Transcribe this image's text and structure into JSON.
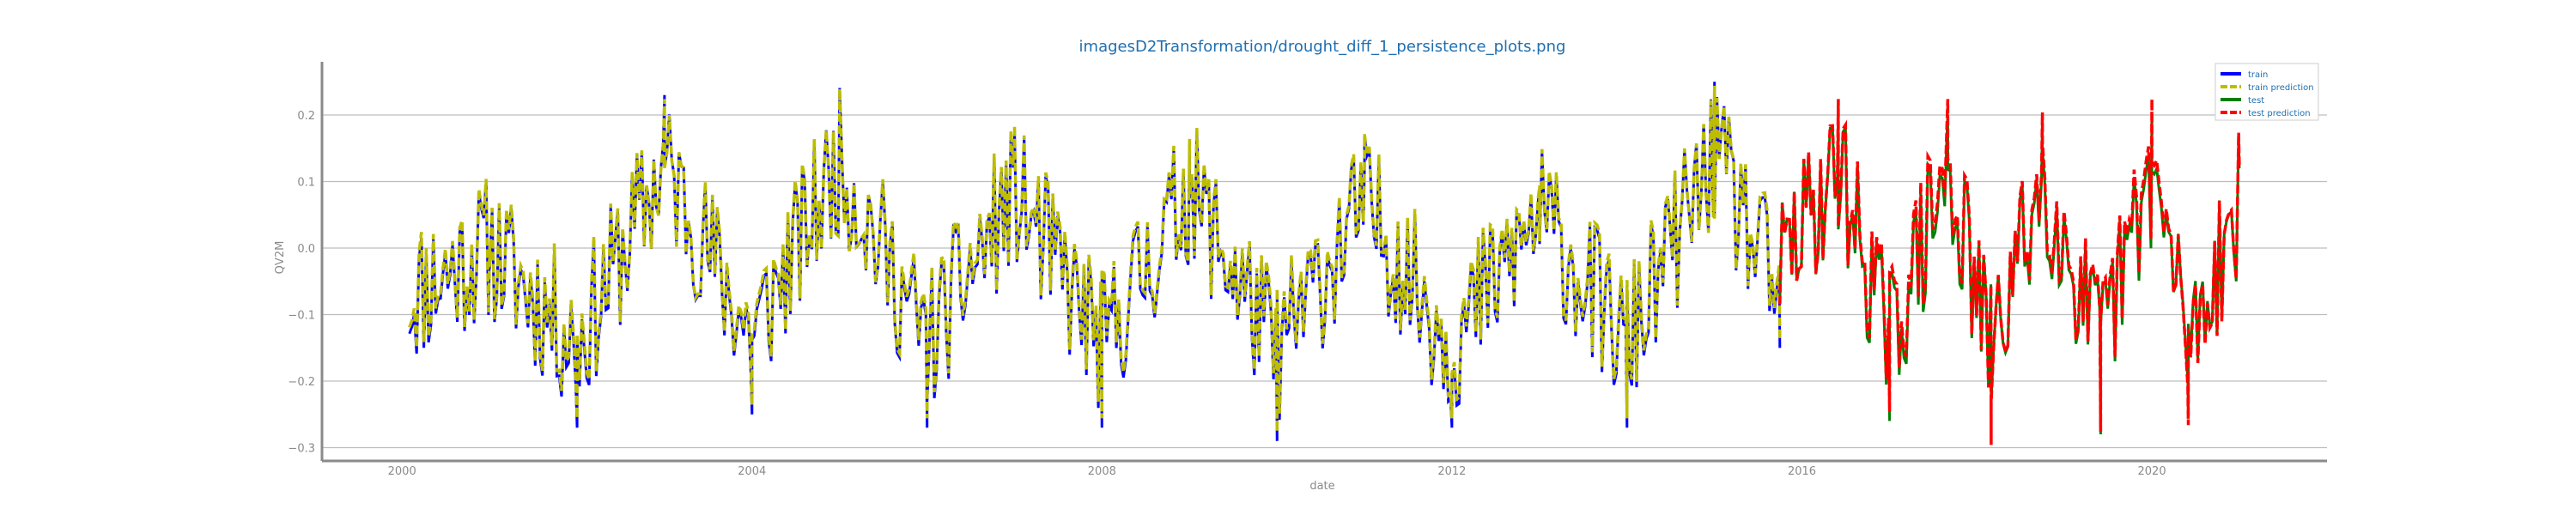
{
  "chart_data": {
    "type": "line",
    "title": "imagesD2Transformation/drought_diff_1_persistence_plots.png",
    "xlabel": "date",
    "ylabel": "QV2M",
    "x_ticks": [
      "2000",
      "2004",
      "2008",
      "2012",
      "2016",
      "2020"
    ],
    "y_ticks": [
      "0.2",
      "0.1",
      "0.0",
      "−0.1",
      "−0.2",
      "−0.3"
    ],
    "xlim": [
      "1999-02-01",
      "2022-01-01"
    ],
    "ylim": [
      -0.32,
      0.28
    ],
    "grid": "y-only",
    "legend_position": "top-right",
    "series": [
      {
        "name": "train",
        "color": "#0000ff",
        "style": "solid",
        "x": [
          "2000-02-01",
          "2001-01-01",
          "2002-01-01",
          "2003-01-01",
          "2004-01-01",
          "2005-01-01",
          "2006-01-01",
          "2007-01-01",
          "2008-01-01",
          "2009-01-01",
          "2010-01-01",
          "2011-01-01",
          "2012-01-01",
          "2013-01-01",
          "2014-01-01",
          "2015-01-01",
          "2015-10-01"
        ],
        "values": [
          -0.13,
          0.0,
          -0.27,
          0.23,
          -0.25,
          0.24,
          -0.27,
          0.15,
          -0.27,
          0.16,
          -0.29,
          0.12,
          -0.27,
          0.09,
          -0.27,
          0.25,
          -0.15
        ]
      },
      {
        "name": "train prediction",
        "color": "#bdbd00",
        "style": "dashed",
        "x": [
          "2000-02-01",
          "2001-01-01",
          "2002-01-01",
          "2003-01-01",
          "2004-01-01",
          "2005-01-01",
          "2006-01-01",
          "2007-01-01",
          "2008-01-01",
          "2009-01-01",
          "2010-01-01",
          "2011-01-01",
          "2012-01-01",
          "2013-01-01",
          "2014-01-01",
          "2015-01-01",
          "2015-10-01"
        ],
        "values": [
          -0.12,
          0.0,
          -0.26,
          0.22,
          -0.24,
          0.23,
          -0.26,
          0.15,
          -0.26,
          0.16,
          -0.28,
          0.12,
          -0.26,
          0.09,
          -0.26,
          0.24,
          -0.14
        ]
      },
      {
        "name": "test",
        "color": "#008000",
        "style": "solid",
        "x": [
          "2015-10-01",
          "2016-06-01",
          "2017-01-01",
          "2017-09-01",
          "2018-03-01",
          "2018-10-01",
          "2019-06-01",
          "2020-01-01",
          "2020-06-01",
          "2020-12-31"
        ],
        "values": [
          -0.05,
          0.22,
          -0.26,
          0.2,
          -0.29,
          0.19,
          -0.28,
          0.2,
          -0.25,
          0.12
        ]
      },
      {
        "name": "test prediction",
        "color": "#ff0000",
        "style": "dashed",
        "x": [
          "2015-10-01",
          "2016-06-01",
          "2017-01-01",
          "2017-09-01",
          "2018-03-01",
          "2018-10-01",
          "2019-06-01",
          "2020-01-01",
          "2020-06-01",
          "2020-12-31"
        ],
        "values": [
          -0.06,
          0.22,
          -0.25,
          0.22,
          -0.3,
          0.2,
          -0.28,
          0.22,
          -0.27,
          0.12
        ]
      }
    ]
  }
}
